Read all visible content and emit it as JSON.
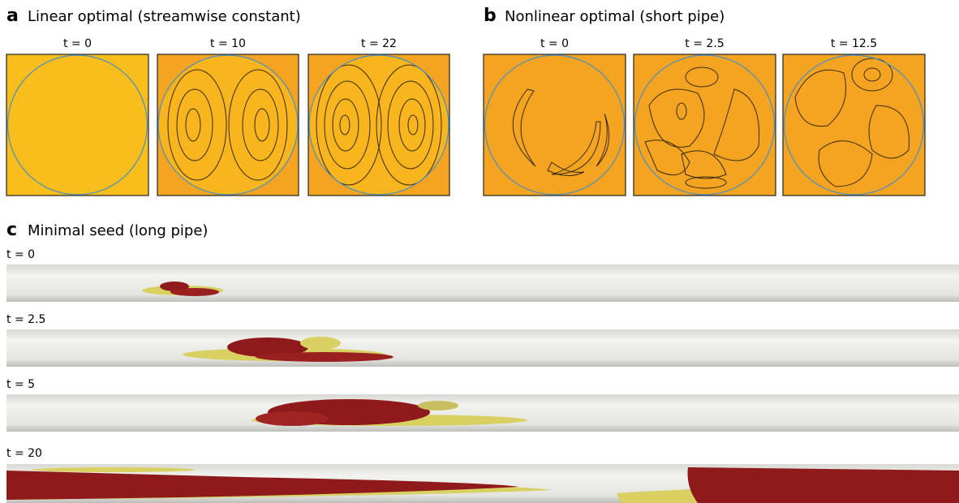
{
  "panels": [
    {
      "letter": "a",
      "title": "Linear optimal (streamwise constant)",
      "frames": [
        "t = 0",
        "t = 10",
        "t = 22"
      ]
    },
    {
      "letter": "b",
      "title": "Nonlinear optimal (short pipe)",
      "frames": [
        "t = 0",
        "t = 2.5",
        "t = 12.5"
      ]
    },
    {
      "letter": "c",
      "title": "Minimal seed (long pipe)",
      "frames": [
        "t = 0",
        "t = 2.5",
        "t = 5",
        "t = 20"
      ]
    }
  ]
}
